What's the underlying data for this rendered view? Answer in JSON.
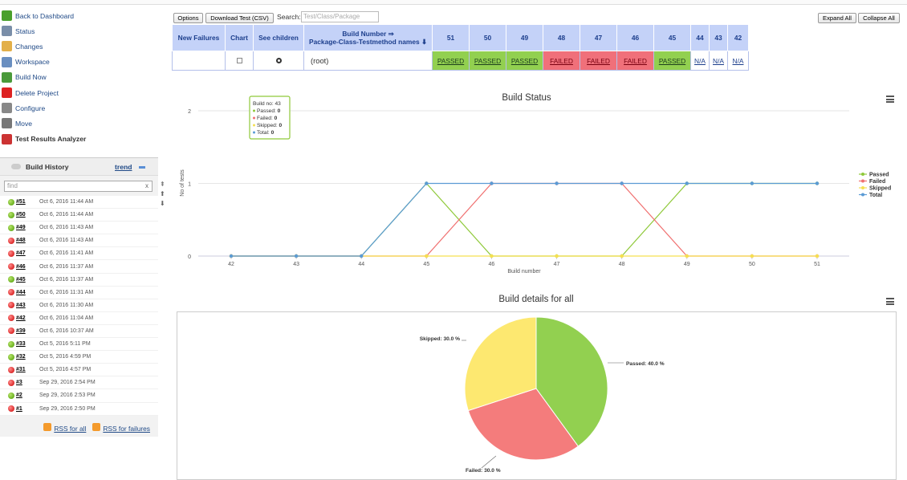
{
  "sidebar": {
    "items": [
      {
        "label": "Back to Dashboard",
        "icon": "up-arrow-icon",
        "color": "#4aa02c"
      },
      {
        "label": "Status",
        "icon": "magnifier-icon",
        "color": "#7a8ea8"
      },
      {
        "label": "Changes",
        "icon": "notepad-icon",
        "color": "#e3b04a"
      },
      {
        "label": "Workspace",
        "icon": "folder-icon",
        "color": "#6a8fc0"
      },
      {
        "label": "Build Now",
        "icon": "clock-play-icon",
        "color": "#4a9a3a"
      },
      {
        "label": "Delete Project",
        "icon": "no-entry-icon",
        "color": "#d22"
      },
      {
        "label": "Configure",
        "icon": "gear-icon",
        "color": "#888"
      },
      {
        "label": "Move",
        "icon": "move-icon",
        "color": "#777"
      },
      {
        "label": "Test Results Analyzer",
        "icon": "chart-icon",
        "color": "#c33"
      }
    ]
  },
  "build_history": {
    "title": "Build History",
    "trend_label": "trend",
    "find_placeholder": "find",
    "clear_glyph": "x",
    "rows": [
      {
        "num": "#51",
        "date": "Oct 6, 2016 11:44 AM",
        "status": "ok"
      },
      {
        "num": "#50",
        "date": "Oct 6, 2016 11:44 AM",
        "status": "ok"
      },
      {
        "num": "#49",
        "date": "Oct 6, 2016 11:43 AM",
        "status": "ok"
      },
      {
        "num": "#48",
        "date": "Oct 6, 2016 11:43 AM",
        "status": "bad"
      },
      {
        "num": "#47",
        "date": "Oct 6, 2016 11:41 AM",
        "status": "bad"
      },
      {
        "num": "#46",
        "date": "Oct 6, 2016 11:37 AM",
        "status": "bad"
      },
      {
        "num": "#45",
        "date": "Oct 6, 2016 11:37 AM",
        "status": "ok"
      },
      {
        "num": "#44",
        "date": "Oct 6, 2016 11:31 AM",
        "status": "bad"
      },
      {
        "num": "#43",
        "date": "Oct 6, 2016 11:30 AM",
        "status": "bad"
      },
      {
        "num": "#42",
        "date": "Oct 6, 2016 11:04 AM",
        "status": "bad"
      },
      {
        "num": "#39",
        "date": "Oct 6, 2016 10:37 AM",
        "status": "bad"
      },
      {
        "num": "#33",
        "date": "Oct 5, 2016 5:11 PM",
        "status": "ok"
      },
      {
        "num": "#32",
        "date": "Oct 5, 2016 4:59 PM",
        "status": "ok"
      },
      {
        "num": "#31",
        "date": "Oct 5, 2016 4:57 PM",
        "status": "bad"
      },
      {
        "num": "#3",
        "date": "Sep 29, 2016 2:54 PM",
        "status": "bad"
      },
      {
        "num": "#2",
        "date": "Sep 29, 2016 2:53 PM",
        "status": "ok"
      },
      {
        "num": "#1",
        "date": "Sep 29, 2016 2:50 PM",
        "status": "bad"
      }
    ],
    "rss_all": "RSS for all",
    "rss_failures": "RSS for failures"
  },
  "toolbar": {
    "options": "Options",
    "download": "Download Test (CSV)",
    "search_label": "Search:",
    "search_placeholder": "Test/Class/Package",
    "expand_all": "Expand All",
    "collapse_all": "Collapse All"
  },
  "table": {
    "headers": {
      "new_failures": "New Failures",
      "chart": "Chart",
      "see_children": "See children",
      "build_number_line1": "Build Number ⇒",
      "build_number_line2": "Package-Class-Testmethod names ⬇"
    },
    "builds": [
      "51",
      "50",
      "49",
      "48",
      "47",
      "46",
      "45",
      "44",
      "43",
      "42"
    ],
    "root_label": "(root)",
    "results": [
      "PASSED",
      "PASSED",
      "PASSED",
      "FAILED",
      "FAILED",
      "FAILED",
      "PASSED",
      "N/A",
      "N/A",
      "N/A"
    ],
    "colors": {
      "passed": "#92d050",
      "failed": "#f0707a"
    }
  },
  "chart_data": [
    {
      "type": "line",
      "title": "Build Status",
      "xlabel": "Build number",
      "ylabel": "No of tests",
      "x": [
        "42",
        "43",
        "44",
        "45",
        "46",
        "47",
        "48",
        "49",
        "50",
        "51"
      ],
      "ylim": [
        0,
        2
      ],
      "yticks": [
        "0",
        "1",
        "2"
      ],
      "legend": "right",
      "series": [
        {
          "name": "Passed",
          "color": "#8fc93a",
          "values": [
            0,
            0,
            0,
            1,
            0,
            0,
            0,
            1,
            1,
            1
          ]
        },
        {
          "name": "Failed",
          "color": "#f07070",
          "values": [
            0,
            0,
            0,
            0,
            1,
            1,
            1,
            0,
            0,
            0
          ]
        },
        {
          "name": "Skipped",
          "color": "#f5e050",
          "values": [
            0,
            0,
            0,
            0,
            0,
            0,
            0,
            0,
            0,
            0
          ]
        },
        {
          "name": "Total",
          "color": "#5b9bd5",
          "values": [
            0,
            0,
            0,
            1,
            1,
            1,
            1,
            1,
            1,
            1
          ]
        }
      ],
      "tooltip": {
        "title": "Build no: 43",
        "lines": [
          {
            "label": "Passed: ",
            "value": "0",
            "color": "#8fc93a"
          },
          {
            "label": "Failed: ",
            "value": "0",
            "color": "#f07070"
          },
          {
            "label": "Skipped: ",
            "value": "0",
            "color": "#f5e050"
          },
          {
            "label": "Total: ",
            "value": "0",
            "color": "#5b9bd5"
          }
        ]
      }
    },
    {
      "type": "pie",
      "title": "Build details for all",
      "slices": [
        {
          "name": "Passed",
          "value": 40.0,
          "label": "Passed: 40.0 %",
          "color": "#92d050"
        },
        {
          "name": "Failed",
          "value": 30.0,
          "label": "Failed: 30.0 %",
          "color": "#f47c7c"
        },
        {
          "name": "Skipped",
          "value": 30.0,
          "label": "Skipped: 30.0 %",
          "color": "#fde870"
        }
      ]
    }
  ]
}
